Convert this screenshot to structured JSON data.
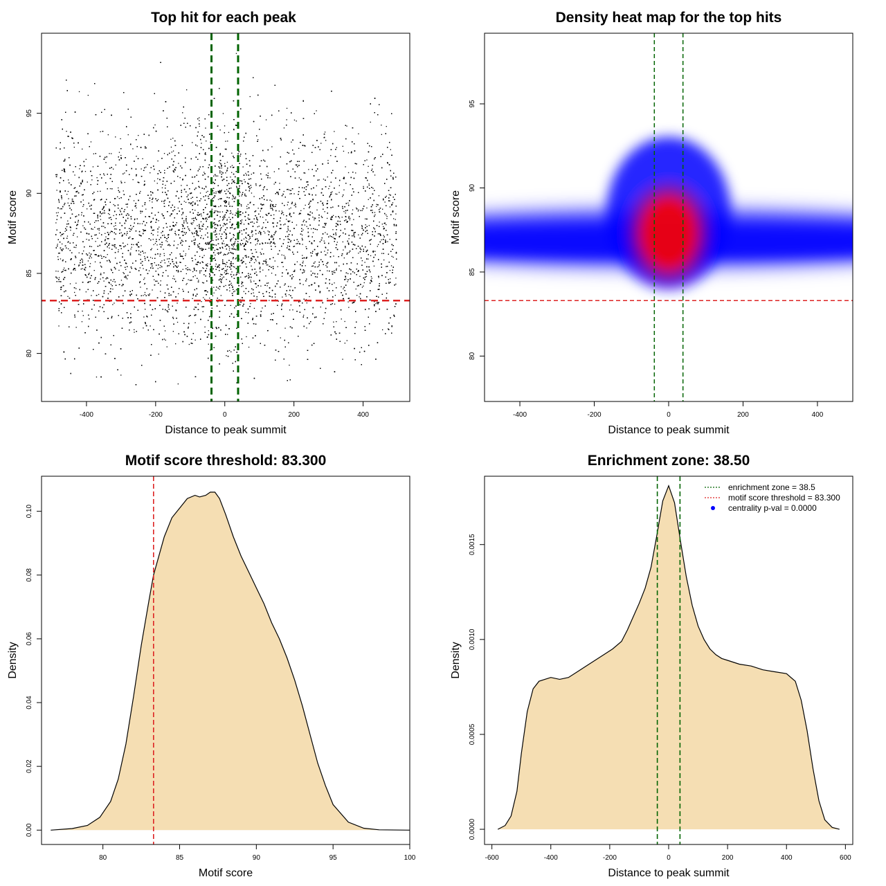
{
  "chart_data": [
    {
      "type": "scatter",
      "title": "Top hit for each peak",
      "xlabel": "Distance to peak summit",
      "ylabel": "Motif score",
      "xlim": [
        -530,
        535
      ],
      "ylim": [
        77,
        100
      ],
      "xticks": [
        -400,
        -200,
        0,
        200,
        400
      ],
      "yticks": [
        80,
        85,
        90,
        95
      ],
      "xtick_labels": [
        "-400",
        "-200",
        "0",
        "200",
        "400"
      ],
      "ytick_labels": [
        "80",
        "85",
        "90",
        "95"
      ],
      "points_summary": {
        "x_range": [
          -490,
          495
        ],
        "score_mean": 87.3,
        "score_sd": 3.3,
        "central_enrichment": true
      },
      "vlines": [
        -38.5,
        38.5
      ],
      "hline": 83.3,
      "colors": {
        "points": "#000000",
        "vlines": "#006400",
        "hline": "#dd2222"
      }
    },
    {
      "type": "heatmap",
      "title": "Density heat map for the top hits",
      "xlabel": "Distance to peak summit",
      "ylabel": "Motif score",
      "xlim": [
        -495,
        495
      ],
      "ylim": [
        77.3,
        99.2
      ],
      "xticks": [
        -400,
        -200,
        0,
        200,
        400
      ],
      "yticks": [
        80,
        85,
        90,
        95
      ],
      "xtick_labels": [
        "-400",
        "-200",
        "0",
        "200",
        "400"
      ],
      "ytick_labels": [
        "80",
        "85",
        "90",
        "95"
      ],
      "density_peak": {
        "x": 0,
        "y": 87.3
      },
      "colorscale": [
        "#ffffff",
        "#0000ff",
        "#ff0000"
      ],
      "vlines": [
        -38.5,
        38.5
      ],
      "hline": 83.3,
      "colors": {
        "vlines": "#006400",
        "hline": "#dd2222"
      }
    },
    {
      "type": "area",
      "title": "Motif score threshold: 83.300",
      "xlabel": "Motif score",
      "ylabel": "Density",
      "xlim": [
        76,
        100
      ],
      "ylim": [
        -0.0045,
        0.111
      ],
      "xticks": [
        80,
        85,
        90,
        95,
        100
      ],
      "yticks": [
        0.0,
        0.02,
        0.04,
        0.06,
        0.08,
        0.1
      ],
      "xtick_labels": [
        "80",
        "85",
        "90",
        "95",
        "100"
      ],
      "ytick_labels": [
        "0.00",
        "0.02",
        "0.04",
        "0.06",
        "0.08",
        "0.10"
      ],
      "x": [
        76.6,
        78,
        79,
        79.8,
        80.5,
        81,
        81.5,
        82,
        82.5,
        83,
        83.3,
        84,
        84.5,
        85,
        85.5,
        86,
        86.3,
        86.7,
        87,
        87.3,
        87.6,
        88,
        88.5,
        89,
        89.5,
        90,
        90.5,
        91,
        91.5,
        92,
        92.5,
        93,
        93.5,
        94,
        94.5,
        95,
        96,
        97,
        98,
        100
      ],
      "y": [
        0.0,
        0.0005,
        0.0015,
        0.004,
        0.009,
        0.016,
        0.027,
        0.042,
        0.058,
        0.072,
        0.08,
        0.092,
        0.098,
        0.101,
        0.104,
        0.105,
        0.1045,
        0.105,
        0.106,
        0.106,
        0.104,
        0.099,
        0.092,
        0.086,
        0.081,
        0.076,
        0.071,
        0.065,
        0.06,
        0.054,
        0.047,
        0.039,
        0.03,
        0.021,
        0.014,
        0.008,
        0.0025,
        0.0006,
        0.0001,
        0.0
      ],
      "vline": 83.3,
      "colors": {
        "fill": "#f5deb3",
        "line": "#000000",
        "vline": "#dd2222"
      }
    },
    {
      "type": "area",
      "title": "Enrichment zone: 38.50",
      "xlabel": "Distance to peak summit",
      "ylabel": "Density",
      "xlim": [
        -625,
        625
      ],
      "ylim": [
        -8e-05,
        0.00186
      ],
      "xticks": [
        -600,
        -400,
        -200,
        0,
        200,
        400,
        600
      ],
      "yticks": [
        0.0,
        0.0005,
        0.001,
        0.0015
      ],
      "xtick_labels": [
        "-600",
        "-400",
        "-200",
        "0",
        "200",
        "400",
        "600"
      ],
      "ytick_labels": [
        "0.0000",
        "0.0005",
        "0.0010",
        "0.0015"
      ],
      "x": [
        -580,
        -555,
        -535,
        -515,
        -500,
        -480,
        -460,
        -440,
        -420,
        -400,
        -370,
        -340,
        -310,
        -280,
        -250,
        -220,
        -190,
        -160,
        -140,
        -120,
        -100,
        -80,
        -60,
        -40,
        -20,
        0,
        20,
        40,
        60,
        80,
        100,
        120,
        140,
        160,
        180,
        200,
        240,
        280,
        320,
        360,
        400,
        430,
        450,
        470,
        490,
        510,
        530,
        555,
        580
      ],
      "y": [
        0.0,
        2e-05,
        7e-05,
        0.0002,
        0.0004,
        0.00062,
        0.00074,
        0.00078,
        0.00079,
        0.0008,
        0.00079,
        0.0008,
        0.00083,
        0.00086,
        0.00089,
        0.00092,
        0.00095,
        0.00099,
        0.00105,
        0.00112,
        0.00119,
        0.00127,
        0.00138,
        0.00155,
        0.00173,
        0.00181,
        0.00172,
        0.00152,
        0.00133,
        0.00118,
        0.00107,
        0.001,
        0.00095,
        0.00092,
        0.0009,
        0.00089,
        0.00087,
        0.00086,
        0.00084,
        0.00083,
        0.00082,
        0.00078,
        0.00068,
        0.00052,
        0.00032,
        0.00015,
        5e-05,
        1e-05,
        0.0
      ],
      "vlines": [
        -38.5,
        38.5
      ],
      "legend": {
        "position": "top-right",
        "entries": [
          {
            "label": "enrichment zone = 38.5",
            "color": "#006400",
            "style": "dotted-line"
          },
          {
            "label": "motif score threshold = 83.300",
            "color": "#dd2222",
            "style": "dotted-line"
          },
          {
            "label": "centrality p-val = 0.0000",
            "color": "#0000ff",
            "style": "point"
          }
        ]
      },
      "colors": {
        "fill": "#f5deb3",
        "line": "#000000",
        "vline": "#006400"
      }
    }
  ]
}
